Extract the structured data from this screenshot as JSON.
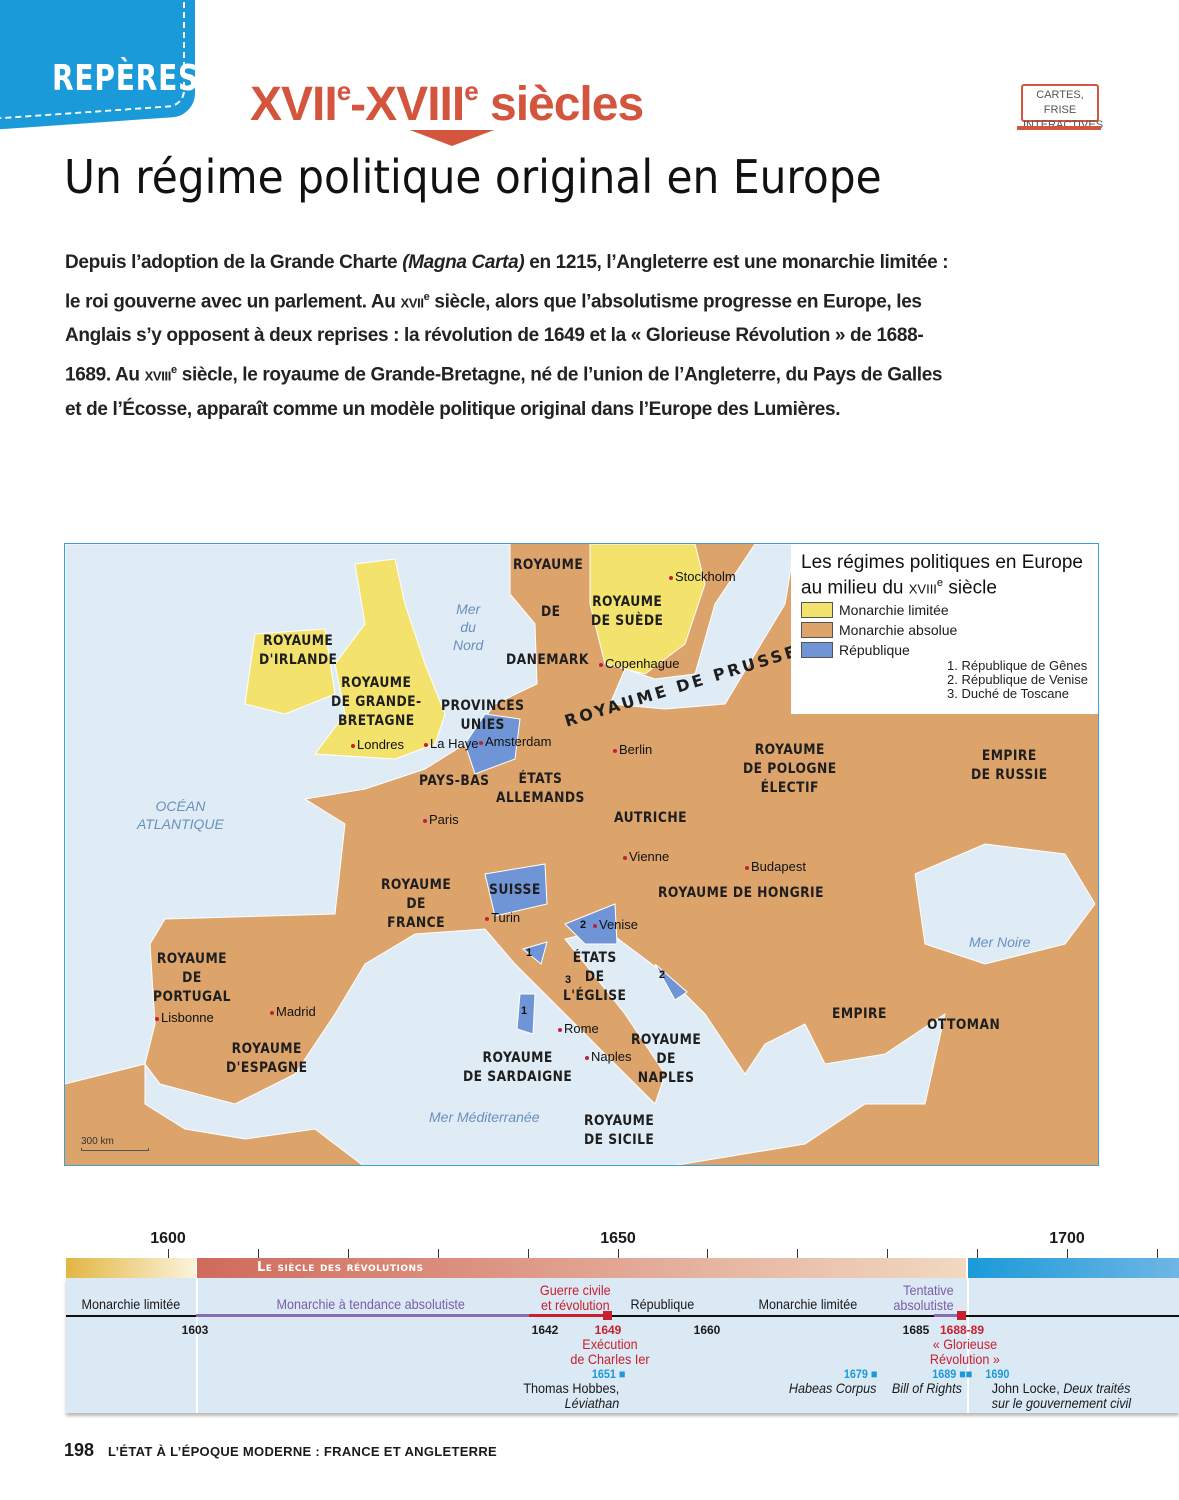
{
  "header": {
    "tab": "REPÈRES",
    "century_a": "XVII",
    "century_sup_a": "e",
    "century_sep": "-",
    "century_b": "XVIII",
    "century_sup_b": "e",
    "century_word": " siècles",
    "title": "Un régime politique original en Europe",
    "badge_line1": "CARTES, FRISE",
    "badge_line2": "INTERACTIVES"
  },
  "intro": {
    "p1": "Depuis l’adoption de la Grande Charte ",
    "p1_italic": "(Magna Carta)",
    "p2": " en 1215, l’Angleterre est une monarchie limitée : le roi gouverne avec un parlement. Au ",
    "sc1": "xvii",
    "sup": "e",
    "p3": " siècle, alors que l’absolutisme progresse en Europe, les Anglais s’y opposent à deux reprises : la révolution de 1649 et la « Glorieuse Révolution » de 1688-1689. Au ",
    "sc2": "xviii",
    "p4": " siècle, le royaume de Grande-Bretagne, né de l’union de l’Angleterre, du Pays de Galles et de l’Écosse, apparaît comme un modèle politique original dans l’Europe des Lumières."
  },
  "map": {
    "colors": {
      "limited": "#f3e26c",
      "absolute": "#dca46b",
      "republic": "#7095d6",
      "water": "#dfecf6"
    },
    "legend": {
      "title1": "Les régimes politiques en Europe",
      "title2a": "au milieu du ",
      "title2sc": "xviii",
      "title2sup": "e",
      "title2b": " siècle",
      "items": [
        "Monarchie limitée",
        "Monarchie absolue",
        "République"
      ],
      "notes": [
        "1. République de Gênes",
        "2. République de Venise",
        "3. Duché de Toscane"
      ]
    },
    "labels": [
      "ROYAUME",
      "DE",
      "DANEMARK",
      "ROYAUME\nDE SUÈDE",
      "ROYAUME\nD'IRLANDE",
      "ROYAUME\nDE GRANDE-\nBRETAGNE",
      "PROVINCES\nUNIES",
      "ROYAUME DE PRUSSE",
      "ROYAUME\nDE POLOGNE\nÉLECTIF",
      "EMPIRE\nDE RUSSIE",
      "PAYS-BAS",
      "ÉTATS\nALLEMANDS",
      "AUTRICHE",
      "ROYAUME DE HONGRIE",
      "ROYAUME\nDE\nFRANCE",
      "SUISSE",
      "ROYAUME\nDE\nPORTUGAL",
      "ÉTATS\nDE\nL'ÉGLISE",
      "EMPIRE",
      "OTTOMAN",
      "ROYAUME\nD'ESPAGNE",
      "ROYAUME\nDE\nNAPLES",
      "ROYAUME\nDE SARDAIGNE",
      "ROYAUME\nDE SICILE"
    ],
    "cities": [
      "Stockholm",
      "Copenhague",
      "Londres",
      "La Haye",
      "Amsterdam",
      "Berlin",
      "Paris",
      "Vienne",
      "Budapest",
      "Turin",
      "Venise",
      "Madrid",
      "Lisbonne",
      "Rome",
      "Naples"
    ],
    "seas": [
      "Mer\ndu\nNord",
      "OCÉAN\nATLANTIQUE",
      "Mer Noire",
      "Mer Méditerranée"
    ],
    "numbers": [
      "2",
      "1",
      "3",
      "2",
      "1"
    ],
    "scale": "300 km"
  },
  "timeline": {
    "years": [
      "1600",
      "1650",
      "1700"
    ],
    "period_title": "Le siècle des révolutions",
    "periods": [
      "Monarchie limitée",
      "Monarchie à tendance absolutiste",
      "Guerre civile\net révolution",
      "République",
      "Monarchie limitée",
      "Tentative\nabsolutiste"
    ],
    "dates": [
      "1603",
      "1642",
      "1649",
      "1660",
      "1685",
      "1688-89"
    ],
    "events": [
      {
        "date": "1649",
        "text": "Exécution\nde Charles Ier"
      },
      {
        "date": "1688-89",
        "text": "« Glorieuse\nRévolution »"
      }
    ],
    "docs": [
      {
        "date": "1651",
        "text": "Thomas Hobbes,",
        "italic": "Léviathan"
      },
      {
        "date": "1679",
        "italic": "Habeas Corpus"
      },
      {
        "date": "1689",
        "italic": "Bill of Rights"
      },
      {
        "date": "1690",
        "text": "John Locke, ",
        "italic": "Deux traités\nsur le gouvernement civil"
      }
    ]
  },
  "footer": {
    "page": "198",
    "text": "L’ÉTAT À L’ÉPOQUE MODERNE : FRANCE ET ANGLETERRE"
  }
}
